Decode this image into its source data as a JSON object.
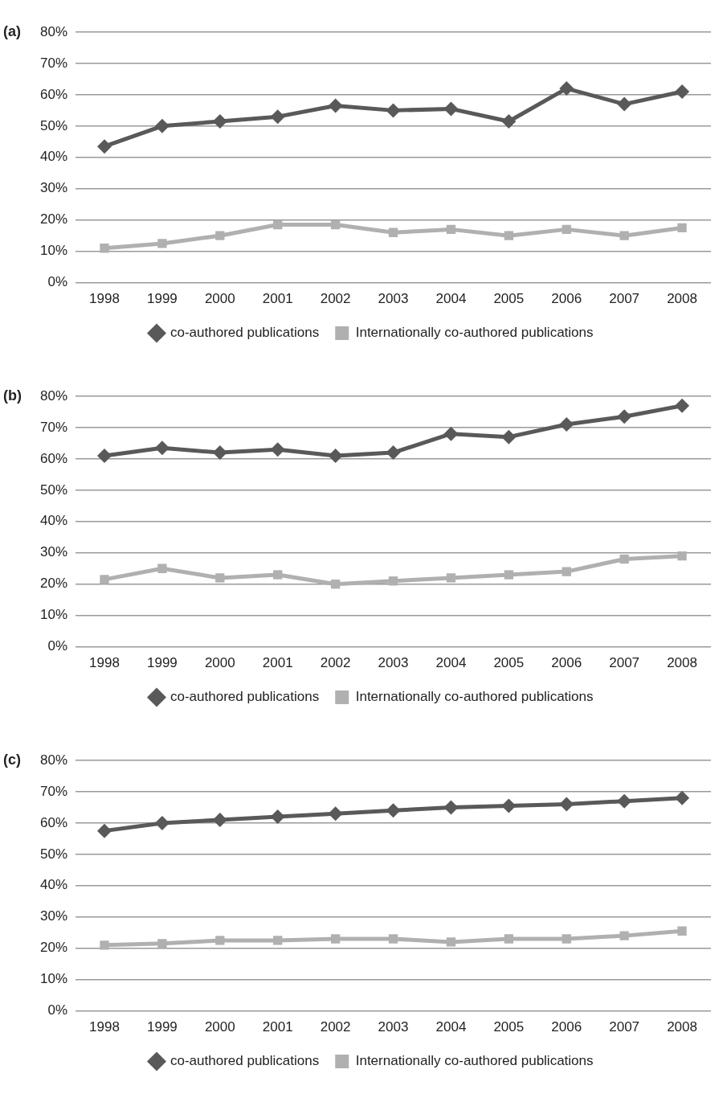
{
  "chart_data": [
    {
      "type": "line",
      "title": "(a)",
      "categories": [
        "1998",
        "1999",
        "2000",
        "2001",
        "2002",
        "2003",
        "2004",
        "2005",
        "2006",
        "2007",
        "2008"
      ],
      "series": [
        {
          "name": "co-authored publications",
          "color": "#595959",
          "marker": "diamond",
          "values": [
            43.5,
            50,
            51.5,
            53,
            56.5,
            55,
            55.5,
            51.5,
            62,
            57,
            61
          ]
        },
        {
          "name": "Internationally co-authored publications",
          "color": "#b0b0b0",
          "marker": "square",
          "values": [
            11,
            12.5,
            15,
            18.5,
            18.5,
            16,
            17,
            15,
            17,
            15,
            17.5
          ]
        }
      ],
      "ylim": [
        0,
        80
      ],
      "yticks": [
        {
          "value": 0,
          "label": "0%"
        },
        {
          "value": 10,
          "label": "10%"
        },
        {
          "value": 20,
          "label": "20%"
        },
        {
          "value": 30,
          "label": "30%"
        },
        {
          "value": 40,
          "label": "40%"
        },
        {
          "value": 50,
          "label": "50%"
        },
        {
          "value": 60,
          "label": "60%"
        },
        {
          "value": 70,
          "label": "70%"
        },
        {
          "value": 80,
          "label": "80%"
        }
      ],
      "grid": "y",
      "legend": "bottom",
      "line_style": "solid"
    },
    {
      "type": "line",
      "title": "(b)",
      "categories": [
        "1998",
        "1999",
        "2000",
        "2001",
        "2002",
        "2003",
        "2004",
        "2005",
        "2006",
        "2007",
        "2008"
      ],
      "series": [
        {
          "name": "co-authored publications",
          "color": "#595959",
          "marker": "diamond",
          "values": [
            61,
            63.5,
            62,
            63,
            61,
            62,
            68,
            67,
            71,
            73.5,
            77
          ]
        },
        {
          "name": "Internationally co-authored publications",
          "color": "#b0b0b0",
          "marker": "square",
          "values": [
            21.5,
            25,
            22,
            23,
            20,
            21,
            22,
            23,
            24,
            28,
            29
          ]
        }
      ],
      "ylim": [
        0,
        80
      ],
      "yticks": [
        {
          "value": 0,
          "label": "0%"
        },
        {
          "value": 10,
          "label": "10%"
        },
        {
          "value": 20,
          "label": "20%"
        },
        {
          "value": 30,
          "label": "30%"
        },
        {
          "value": 40,
          "label": "40%"
        },
        {
          "value": 50,
          "label": "50%"
        },
        {
          "value": 60,
          "label": "60%"
        },
        {
          "value": 70,
          "label": "70%"
        },
        {
          "value": 80,
          "label": "80%"
        }
      ],
      "grid": "y",
      "legend": "bottom",
      "line_style": "solid"
    },
    {
      "type": "line",
      "title": "(c)",
      "categories": [
        "1998",
        "1999",
        "2000",
        "2001",
        "2002",
        "2003",
        "2004",
        "2005",
        "2006",
        "2007",
        "2008"
      ],
      "series": [
        {
          "name": "co-authored publications",
          "color": "#595959",
          "marker": "diamond",
          "values": [
            57.5,
            60,
            61,
            62,
            63,
            64,
            65,
            65.5,
            66,
            67,
            68
          ]
        },
        {
          "name": "Internationally co-authored publications",
          "color": "#b0b0b0",
          "marker": "square",
          "values": [
            21,
            21.5,
            22.5,
            22.5,
            23,
            23,
            22,
            23,
            23,
            24,
            25.5
          ]
        }
      ],
      "ylim": [
        0,
        80
      ],
      "yticks": [
        {
          "value": 0,
          "label": "0%"
        },
        {
          "value": 10,
          "label": "10%"
        },
        {
          "value": 20,
          "label": "20%"
        },
        {
          "value": 30,
          "label": "30%"
        },
        {
          "value": 40,
          "label": "40%"
        },
        {
          "value": 50,
          "label": "50%"
        },
        {
          "value": 60,
          "label": "60%"
        },
        {
          "value": 70,
          "label": "70%"
        },
        {
          "value": 80,
          "label": "80%"
        }
      ],
      "grid": "y",
      "legend": "bottom",
      "line_style": "solid"
    }
  ]
}
